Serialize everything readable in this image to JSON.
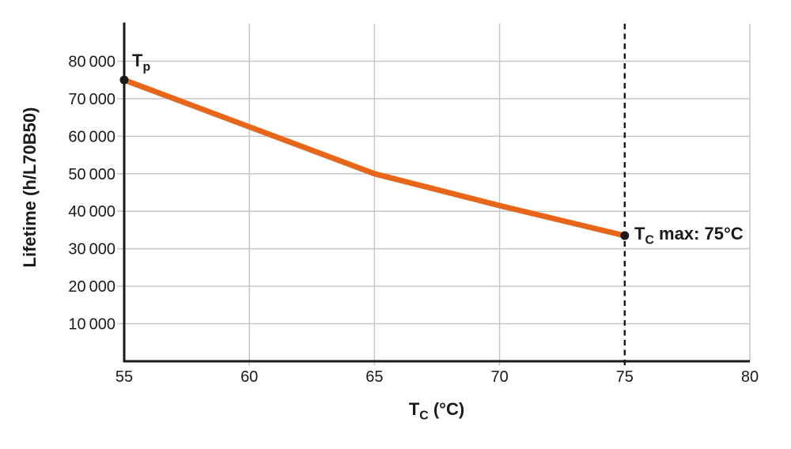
{
  "chart_data": {
    "type": "line",
    "x": [
      55,
      60,
      65,
      70,
      75
    ],
    "series": [
      {
        "name": "lifetime-curve",
        "values": [
          75000,
          62500,
          50000,
          41500,
          33500
        ],
        "color": "#E8661A"
      }
    ],
    "title": "",
    "xlabel": "Tc (°C)",
    "ylabel": "Lifetime (h/L70B50)",
    "xlim": [
      55,
      80
    ],
    "ylim": [
      0,
      90000
    ],
    "grid": true,
    "legend": "none",
    "vline": {
      "x": 75,
      "style": "dashed",
      "color": "#1a1a1a"
    },
    "annotations": [
      {
        "text": "Tp",
        "x": 55,
        "y": 75000
      },
      {
        "text": "Tc max: 75°C",
        "x": 75,
        "y": 33500
      }
    ]
  },
  "ticks": {
    "y": [
      {
        "v": 80000,
        "label": "80 000"
      },
      {
        "v": 70000,
        "label": "70 000"
      },
      {
        "v": 60000,
        "label": "60 000"
      },
      {
        "v": 50000,
        "label": "50 000"
      },
      {
        "v": 40000,
        "label": "40 000"
      },
      {
        "v": 30000,
        "label": "30 000"
      },
      {
        "v": 20000,
        "label": "20 000"
      },
      {
        "v": 10000,
        "label": "10 000"
      }
    ],
    "x": [
      {
        "v": 55,
        "label": "55"
      },
      {
        "v": 60,
        "label": "60"
      },
      {
        "v": 65,
        "label": "65"
      },
      {
        "v": 70,
        "label": "70"
      },
      {
        "v": 75,
        "label": "75"
      },
      {
        "v": 80,
        "label": "80"
      }
    ]
  },
  "labels": {
    "y_title": "Lifetime (h/L70B50)",
    "x_title_main": "T",
    "x_title_sub": "C",
    "x_title_rest": " (°C)",
    "start_main": "T",
    "start_sub": "p",
    "start_rest": "",
    "end_main": "T",
    "end_sub": "C",
    "end_rest": " max: 75°C"
  },
  "colors": {
    "line": "#E8661A",
    "grid": "#C6C6C6",
    "axis": "#1A1A1A",
    "text": "#1A1A1A"
  }
}
